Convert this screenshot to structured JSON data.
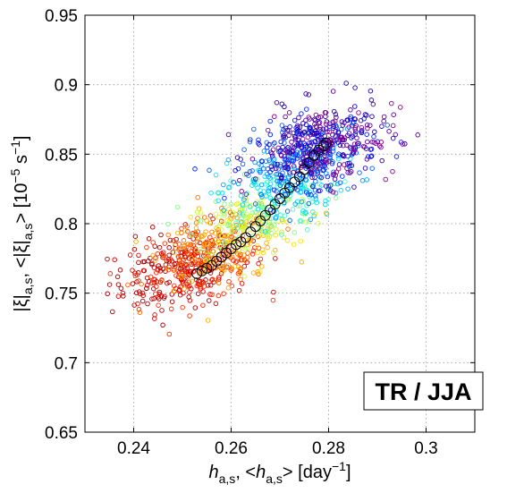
{
  "chart_data": {
    "type": "scatter",
    "title": "",
    "xlabel_parts": [
      "h",
      "a,s",
      ", <",
      "h",
      "a,s",
      "> [day",
      "−1",
      "]"
    ],
    "ylabel_parts": [
      "|ξ|",
      "a,s",
      ", <|ξ|",
      "a,s",
      ">  [10",
      "−5",
      " s",
      "−1",
      "]"
    ],
    "xlim": [
      0.23,
      0.31
    ],
    "ylim": [
      0.65,
      0.95
    ],
    "xticks": [
      0.24,
      0.26,
      0.28,
      0.3
    ],
    "xtick_labels": [
      "0.24",
      "0.26",
      "0.28",
      "0.3"
    ],
    "yticks": [
      0.65,
      0.7,
      0.75,
      0.8,
      0.85,
      0.9,
      0.95
    ],
    "ytick_labels": [
      "0.65",
      "0.7",
      "0.75",
      "0.8",
      "0.85",
      "0.9",
      "0.95"
    ],
    "grid": true,
    "grid_style": "dotted",
    "annotation": "TR / JJA",
    "annotation_position": "bottom-right",
    "colormap": "jet",
    "color_encoding": "point sequence, red (low values) to blue / purple (high values)",
    "marker": "open circle",
    "scatter_clusters": [
      {
        "color": "#a50000",
        "x_center": 0.248,
        "x_spread": 0.0065,
        "y_center": 0.765,
        "y_spread": 0.014,
        "count": 110
      },
      {
        "color": "#dc0000",
        "x_center": 0.251,
        "x_spread": 0.0065,
        "y_center": 0.768,
        "y_spread": 0.014,
        "count": 130
      },
      {
        "color": "#ff2a00",
        "x_center": 0.254,
        "x_spread": 0.0065,
        "y_center": 0.772,
        "y_spread": 0.014,
        "count": 120
      },
      {
        "color": "#ff6a00",
        "x_center": 0.256,
        "x_spread": 0.0065,
        "y_center": 0.778,
        "y_spread": 0.013,
        "count": 100
      },
      {
        "color": "#ffaa00",
        "x_center": 0.259,
        "x_spread": 0.0065,
        "y_center": 0.785,
        "y_spread": 0.013,
        "count": 80
      },
      {
        "color": "#ffe000",
        "x_center": 0.262,
        "x_spread": 0.0065,
        "y_center": 0.792,
        "y_spread": 0.013,
        "count": 60
      },
      {
        "color": "#c8ff38",
        "x_center": 0.264,
        "x_spread": 0.0065,
        "y_center": 0.8,
        "y_spread": 0.013,
        "count": 60
      },
      {
        "color": "#80ff80",
        "x_center": 0.266,
        "x_spread": 0.0065,
        "y_center": 0.808,
        "y_spread": 0.013,
        "count": 60
      },
      {
        "color": "#38ffc8",
        "x_center": 0.268,
        "x_spread": 0.0065,
        "y_center": 0.816,
        "y_spread": 0.013,
        "count": 60
      },
      {
        "color": "#00e0ff",
        "x_center": 0.27,
        "x_spread": 0.0065,
        "y_center": 0.825,
        "y_spread": 0.013,
        "count": 70
      },
      {
        "color": "#00a0ff",
        "x_center": 0.273,
        "x_spread": 0.0065,
        "y_center": 0.835,
        "y_spread": 0.013,
        "count": 90
      },
      {
        "color": "#0060ff",
        "x_center": 0.275,
        "x_spread": 0.0065,
        "y_center": 0.845,
        "y_spread": 0.013,
        "count": 110
      },
      {
        "color": "#0020ff",
        "x_center": 0.277,
        "x_spread": 0.0065,
        "y_center": 0.852,
        "y_spread": 0.013,
        "count": 130
      },
      {
        "color": "#2000b0",
        "x_center": 0.278,
        "x_spread": 0.0065,
        "y_center": 0.857,
        "y_spread": 0.014,
        "count": 130
      },
      {
        "color": "#5a00a0",
        "x_center": 0.279,
        "x_spread": 0.0065,
        "y_center": 0.858,
        "y_spread": 0.014,
        "count": 110
      },
      {
        "color": "#8a008a",
        "x_center": 0.28,
        "x_spread": 0.007,
        "y_center": 0.857,
        "y_spread": 0.015,
        "count": 70
      }
    ],
    "mean_series": {
      "name": "",
      "marker": "open circle, black",
      "x": [
        0.253,
        0.254,
        0.255,
        0.256,
        0.257,
        0.258,
        0.259,
        0.26,
        0.261,
        0.262,
        0.263,
        0.264,
        0.265,
        0.266,
        0.267,
        0.268,
        0.269,
        0.27,
        0.271,
        0.272,
        0.273,
        0.274,
        0.275,
        0.276,
        0.277,
        0.278,
        0.279,
        0.2795
      ],
      "y": [
        0.764,
        0.766,
        0.768,
        0.77,
        0.773,
        0.776,
        0.779,
        0.782,
        0.785,
        0.787,
        0.79,
        0.794,
        0.798,
        0.802,
        0.806,
        0.81,
        0.814,
        0.818,
        0.822,
        0.826,
        0.83,
        0.834,
        0.839,
        0.844,
        0.849,
        0.853,
        0.856,
        0.858
      ]
    }
  }
}
